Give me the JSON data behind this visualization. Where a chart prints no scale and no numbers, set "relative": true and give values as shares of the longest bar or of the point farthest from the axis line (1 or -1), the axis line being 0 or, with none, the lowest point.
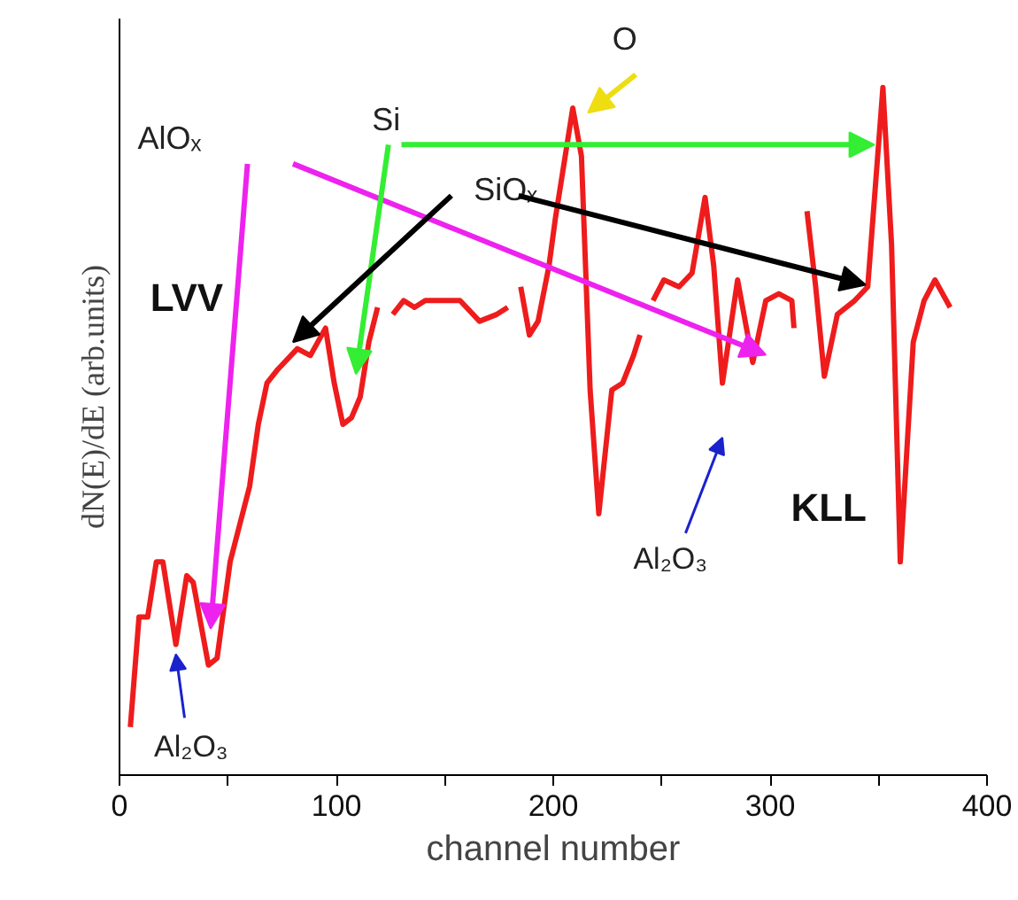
{
  "chart_data": {
    "type": "line",
    "relative": true,
    "xlabel": "channel number",
    "ylabel": "dN(E)/dE (arb.units)",
    "xlim": [
      0,
      400
    ],
    "xticks": [
      0,
      {
        "value": 50,
        "label": null
      },
      100,
      {
        "value": 150,
        "label": null
      },
      200,
      {
        "value": 250,
        "label": null
      },
      300,
      {
        "value": 350,
        "label": null
      },
      400
    ],
    "grid": false,
    "marker": "none",
    "line_style": "solid",
    "x": [
      5,
      9,
      13,
      17,
      20,
      26,
      31,
      34,
      41,
      45,
      51,
      60,
      64,
      68,
      73,
      82,
      88,
      95,
      99,
      103,
      107,
      111,
      115,
      119,
      122,
      126,
      131,
      136,
      141,
      149,
      157,
      166,
      174,
      179,
      182,
      185,
      189,
      193,
      198,
      201,
      209,
      213,
      217,
      221,
      227,
      232,
      237,
      240,
      243,
      246,
      251,
      258,
      264,
      270,
      274,
      278,
      285,
      292,
      298,
      304,
      310,
      311,
      314,
      317,
      321,
      325,
      331,
      339,
      345,
      352,
      356,
      360,
      366,
      371,
      376,
      383
    ],
    "series": [
      {
        "color": "#ee1c1c",
        "values": [
          0.07,
          0.23,
          0.23,
          0.31,
          0.31,
          0.19,
          0.29,
          0.28,
          0.16,
          0.17,
          0.31,
          0.42,
          0.51,
          0.57,
          0.59,
          0.62,
          0.61,
          0.65,
          0.57,
          0.51,
          0.52,
          0.55,
          0.63,
          0.68,
          null,
          0.67,
          0.69,
          0.68,
          0.69,
          0.69,
          0.69,
          0.66,
          0.67,
          0.68,
          null,
          0.71,
          0.64,
          0.66,
          0.74,
          0.81,
          0.97,
          0.9,
          0.56,
          0.38,
          0.56,
          0.57,
          0.61,
          0.64,
          null,
          0.69,
          0.72,
          0.71,
          0.73,
          0.84,
          0.74,
          0.57,
          0.72,
          0.6,
          0.69,
          0.7,
          0.69,
          0.65,
          null,
          0.82,
          0.71,
          0.58,
          0.67,
          0.69,
          0.71,
          1.0,
          0.77,
          0.31,
          0.63,
          0.69,
          0.72,
          0.68
        ]
      }
    ],
    "annotations": [
      "AlOₓ",
      "Si",
      "SiOₓ",
      "O",
      "LVV",
      "KLL",
      "Al₂O₃",
      "Al₂O₃"
    ]
  }
}
